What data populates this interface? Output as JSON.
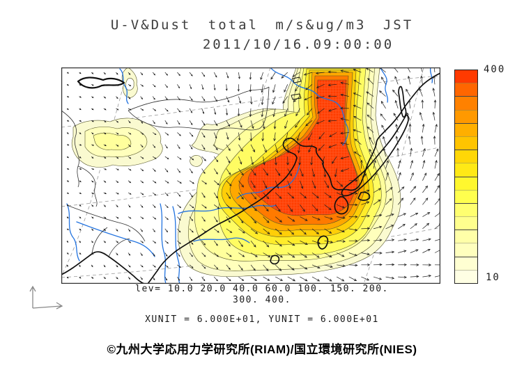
{
  "title": {
    "line1": "U-V&Dust total m/s&ug/m3 JST",
    "line2": "2011/10/16.09:00:00"
  },
  "colorbar": {
    "max_label": "400",
    "min_label": "10",
    "colors_bottom_to_top": [
      "#FFFFE4",
      "#FFFFD2",
      "#FFFFBE",
      "#FFFFA8",
      "#FFFF8E",
      "#FFFF70",
      "#FFFF4E",
      "#FFF72E",
      "#FFE916",
      "#FFD707",
      "#FFC400",
      "#FFAF00",
      "#FF9900",
      "#FF8100",
      "#FF6600",
      "#FF3A00"
    ]
  },
  "legend": {
    "lev_line1": "lev= 10.0 20.0 40.0 60.0 100. 150. 200.",
    "lev_line2": "300. 400.",
    "units": "XUNIT = 6.000E+01, YUNIT = 6.000E+01"
  },
  "footer": {
    "credit": "©九州大学応用力学研究所(RIAM)/国立環境研究所(NIES)"
  },
  "chart_data": {
    "type": "heatmap",
    "title": "U-V&Dust total m/s&ug/m3 JST",
    "timestamp": "2011/10/16.09:00:00",
    "variable": "Dust total concentration (ug/m3) shaded, with U-V wind vectors (m/s)",
    "contour_levels": [
      10.0,
      20.0,
      40.0,
      60.0,
      100,
      150,
      200,
      300,
      400
    ],
    "colorbar_range": [
      10,
      400
    ],
    "colorbar_orientation": "vertical-right",
    "xunit": "6.000E+01",
    "yunit": "6.000E+01",
    "region": "East Asia (China, Mongolia, Korea, Japan, western China / India at lower left)",
    "features": {
      "primary_maximum": "Broad dust plume > 300-400 ug/m3 over northeast China, the Yellow Sea and the Korean Peninsula, extending north to the map edge and southeast toward Kyushu/western Japan",
      "secondary_maximum": "Weak plume 10-40 ug/m3 over the Taklamakan / Tarim Basin in western China",
      "small_plume": "Small 10-20 ug/m3 cell near the northern map edge at upper left",
      "wind_pattern": "Cyclonic (counterclockwise) circulation centered near the Sea of Japan; strong southerly flow east of Japan, northerly flow over Mongolia, weak easterly drift over central Asia"
    },
    "overlays": [
      "black coastlines and national borders",
      "blue rivers",
      "gray dashed lat/lon graticule",
      "black wind vector arrows on regular grid"
    ]
  }
}
